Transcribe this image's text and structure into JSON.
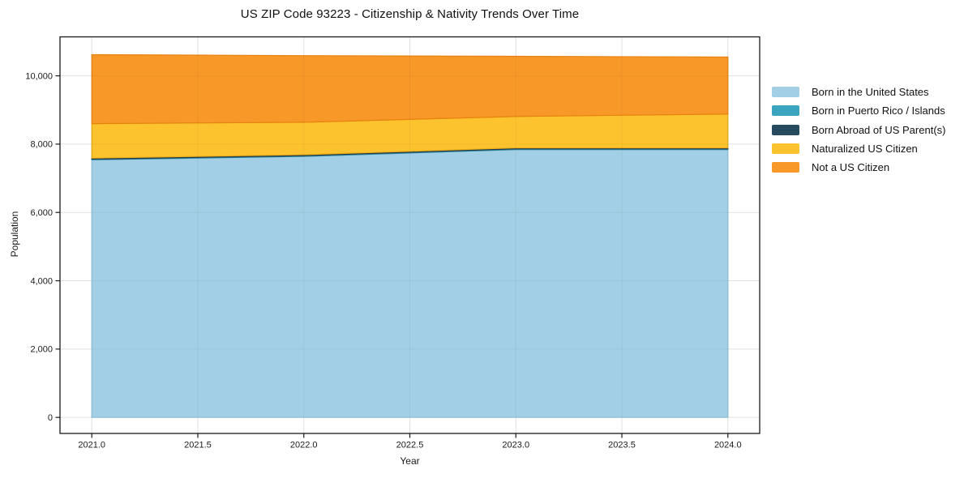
{
  "page": {
    "background_color": "#ffffff",
    "text_color": "#111111"
  },
  "chart_data": {
    "type": "area",
    "stacked": true,
    "title": "US ZIP Code 93223 - Citizenship & Nativity Trends Over Time",
    "xlabel": "Year",
    "ylabel": "Population",
    "grid": true,
    "legend_position": "right-outside",
    "x": [
      2021,
      2022,
      2023,
      2024
    ],
    "series": [
      {
        "name": "Born in the United States",
        "color": "#a2cfe5",
        "edge_color": "#8ec3dc",
        "values": [
          7540,
          7640,
          7840,
          7840
        ]
      },
      {
        "name": "Born in Puerto Rico / Islands",
        "color": "#3ba4bf",
        "edge_color": "#3391ab",
        "values": [
          20,
          20,
          20,
          20
        ]
      },
      {
        "name": "Born Abroad of US Parent(s)",
        "color": "#264a5e",
        "edge_color": "#1e3c4d",
        "values": [
          30,
          30,
          30,
          30
        ]
      },
      {
        "name": "Naturalized US Citizen",
        "color": "#fcc32e",
        "edge_color": "#eaad18",
        "values": [
          1010,
          950,
          920,
          990
        ]
      },
      {
        "name": "Not a US Citizen",
        "color": "#f79829",
        "edge_color": "#e8820f",
        "values": [
          2020,
          1950,
          1760,
          1670
        ]
      }
    ],
    "xticks": [
      {
        "label": "2021.0",
        "value": 2021.0
      },
      {
        "label": "2021.5",
        "value": 2021.5
      },
      {
        "label": "2022.0",
        "value": 2022.0
      },
      {
        "label": "2022.5",
        "value": 2022.5
      },
      {
        "label": "2023.0",
        "value": 2023.0
      },
      {
        "label": "2023.5",
        "value": 2023.5
      },
      {
        "label": "2024.0",
        "value": 2024.0
      }
    ],
    "yticks": [
      {
        "label": "0",
        "value": 0
      },
      {
        "label": "2,000",
        "value": 2000
      },
      {
        "label": "4,000",
        "value": 4000
      },
      {
        "label": "6,000",
        "value": 6000
      },
      {
        "label": "8,000",
        "value": 8000
      },
      {
        "label": "10,000",
        "value": 10000
      }
    ],
    "xlim": [
      2020.85,
      2024.15
    ],
    "ylim": [
      -470,
      11140
    ],
    "colors": {
      "gridline": "#ebebeb",
      "spine": "#1a1a1a",
      "tick_label": "#1a1a1a"
    }
  }
}
